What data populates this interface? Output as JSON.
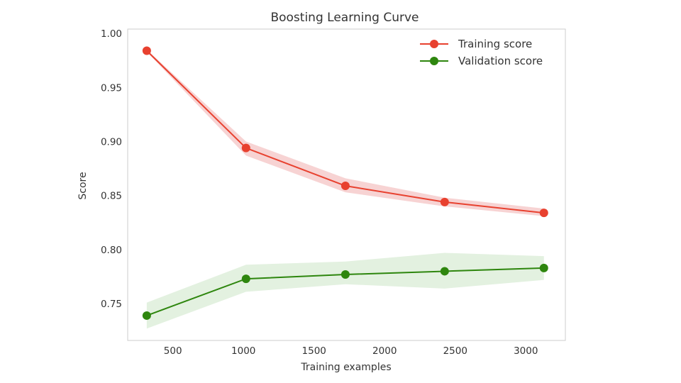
{
  "chart_data": {
    "type": "line",
    "title": "Boosting Learning Curve",
    "xlabel": "Training examples",
    "ylabel": "Score",
    "xlim": [
      180,
      3280
    ],
    "ylim": [
      0.716,
      1.004
    ],
    "xticks": [
      500,
      1000,
      1500,
      2000,
      2500,
      3000
    ],
    "xtick_labels": [
      "500",
      "1000",
      "1500",
      "2000",
      "2500",
      "3000"
    ],
    "yticks": [
      0.75,
      0.8,
      0.85,
      0.9,
      0.95,
      1.0
    ],
    "ytick_labels": [
      "0.75",
      "0.80",
      "0.85",
      "0.90",
      "0.95",
      "1.00"
    ],
    "grid": false,
    "legend": "top-right",
    "x": [
      315,
      1018,
      1722,
      2425,
      3128
    ],
    "series": [
      {
        "name": "Training score",
        "color": "#e8412f",
        "band_color": "#f4c4c4",
        "values": [
          0.984,
          0.894,
          0.859,
          0.844,
          0.834
        ],
        "lower": [
          0.983,
          0.887,
          0.853,
          0.84,
          0.831
        ],
        "upper": [
          0.985,
          0.9,
          0.866,
          0.848,
          0.838
        ]
      },
      {
        "name": "Validation score",
        "color": "#2e860e",
        "band_color": "#d9ecd6",
        "values": [
          0.739,
          0.773,
          0.777,
          0.78,
          0.783
        ],
        "lower": [
          0.727,
          0.761,
          0.768,
          0.764,
          0.772
        ],
        "upper": [
          0.751,
          0.786,
          0.789,
          0.797,
          0.794
        ]
      }
    ]
  }
}
